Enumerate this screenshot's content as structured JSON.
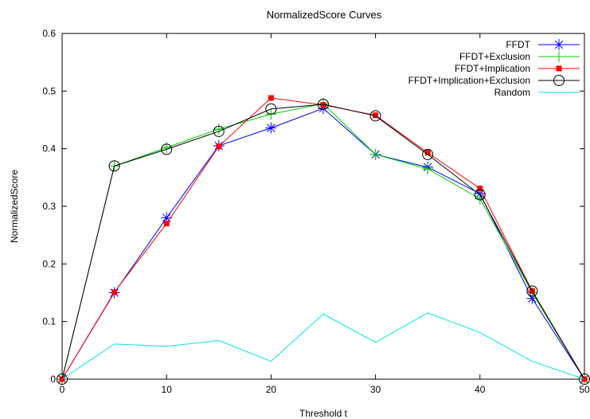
{
  "chart_data": {
    "type": "line",
    "title": "NormalizedScore Curves",
    "xlabel": "Threshold t",
    "ylabel": "NormalizedScore",
    "xlim": [
      0,
      50
    ],
    "ylim": [
      0,
      0.6
    ],
    "x_ticks": [
      0,
      10,
      20,
      30,
      40,
      50
    ],
    "y_ticks": [
      0,
      0.1,
      0.2,
      0.3,
      0.4,
      0.5,
      0.6
    ],
    "x_tick_labels": [
      "0",
      "10",
      "20",
      "30",
      "40",
      "50"
    ],
    "y_tick_labels": [
      "0",
      "0.1",
      "0.2",
      "0.3",
      "0.4",
      "0.5",
      "0.6"
    ],
    "grid": false,
    "legend_position": "top-right",
    "x": [
      0,
      5,
      10,
      15,
      20,
      25,
      30,
      35,
      40,
      45,
      50
    ],
    "series": [
      {
        "name": "FFDT",
        "color": "#0000ff",
        "marker": "asterisk",
        "values": [
          0,
          0.15,
          0.28,
          0.405,
          0.436,
          0.47,
          0.39,
          0.368,
          0.322,
          0.14,
          0
        ]
      },
      {
        "name": "FFDT+Exclusion",
        "color": "#00cc00",
        "marker": "plus",
        "values": [
          0,
          0.37,
          0.402,
          0.434,
          0.46,
          0.478,
          0.39,
          0.365,
          0.313,
          0.15,
          0
        ]
      },
      {
        "name": "FFDT+Implication",
        "color": "#ff0000",
        "marker": "square",
        "values": [
          0,
          0.151,
          0.27,
          0.404,
          0.488,
          0.476,
          0.458,
          0.393,
          0.331,
          0.153,
          0
        ]
      },
      {
        "name": "FFDT+Implication+Exclusion",
        "color": "#000000",
        "marker": "circle",
        "values": [
          0,
          0.37,
          0.399,
          0.43,
          0.469,
          0.477,
          0.457,
          0.39,
          0.32,
          0.153,
          0
        ]
      },
      {
        "name": "Random",
        "color": "#00e5e5",
        "marker": "none",
        "values": [
          0,
          0.061,
          0.057,
          0.067,
          0.031,
          0.113,
          0.064,
          0.115,
          0.081,
          0.031,
          0
        ]
      }
    ]
  }
}
